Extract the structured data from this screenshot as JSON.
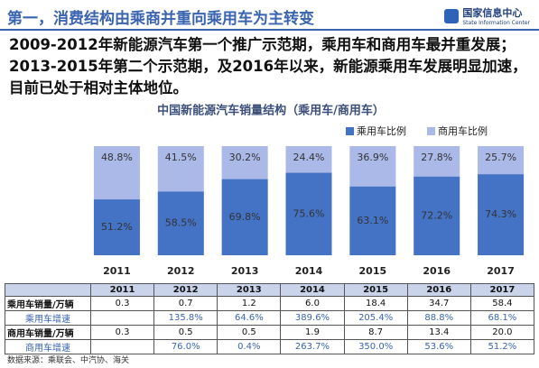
{
  "header": {
    "title": "第一，消费结构由乘商并重向乘用车为主转变",
    "logo_cn": "国家信息中心",
    "logo_en": "State Information Center"
  },
  "summary": "2009-2012年新能源汽车第一个推广示范期，乘用车和商用车最并重发展；2013-2015年第二个示范期，及2016年以来，新能源乘用车发展明显加速，目前已处于相对主体地位。",
  "chart_data": {
    "type": "stacked-bar",
    "title": "中国新能源汽车销量结构（乘用车/商用车）",
    "categories": [
      "2011",
      "2012",
      "2013",
      "2014",
      "2015",
      "2016",
      "2017"
    ],
    "ylim": [
      0,
      100
    ],
    "series": [
      {
        "name": "乘用车比例",
        "color": "#4472c4",
        "values": [
          51.2,
          58.5,
          69.8,
          75.6,
          63.1,
          72.2,
          74.3
        ],
        "value_labels": [
          "51.2%",
          "58.5%",
          "69.8%",
          "75.6%",
          "63.1%",
          "72.2%",
          "74.3%"
        ]
      },
      {
        "name": "商用车比例",
        "color": "#abb9e8",
        "values": [
          48.8,
          41.5,
          30.2,
          24.4,
          36.9,
          27.8,
          25.7
        ],
        "value_labels": [
          "48.8%",
          "41.5%",
          "30.2%",
          "24.4%",
          "36.9%",
          "27.8%",
          "25.7%"
        ]
      }
    ]
  },
  "table": {
    "header": [
      null,
      "2011",
      "2012",
      "2013",
      "2014",
      "2015",
      "2016",
      "2017"
    ],
    "rows": [
      [
        "乘用车销量/万辆",
        "0.3",
        "0.7",
        "1.2",
        "6.0",
        "18.4",
        "34.7",
        "58.4"
      ],
      [
        "乘用车增速",
        null,
        "135.8%",
        "64.6%",
        "389.6%",
        "205.4%",
        "88.8%",
        "68.1%"
      ],
      [
        "商用车销量/万辆",
        "0.3",
        "0.5",
        "0.5",
        "1.9",
        "8.7",
        "13.4",
        "20.0"
      ],
      [
        "商用车增速",
        null,
        "76.0%",
        "0.4%",
        "263.7%",
        "350.0%",
        "53.6%",
        "51.2%"
      ]
    ]
  },
  "source": "数据来源：乘联会、中汽协、海关"
}
